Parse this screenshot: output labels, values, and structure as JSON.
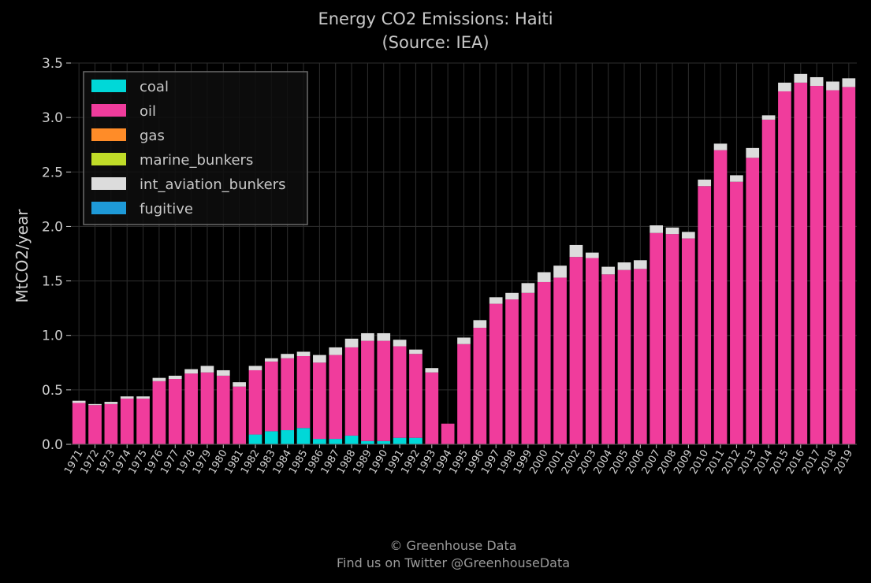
{
  "chart_data": {
    "type": "bar",
    "stacked": true,
    "title": "Energy CO2 Emissions: Haiti",
    "subtitle": "(Source: IEA)",
    "ylabel": "MtCO2/year",
    "xlabel": "",
    "ylim": [
      0,
      3.5
    ],
    "yticks": [
      "0.0",
      "0.5",
      "1.0",
      "1.5",
      "2.0",
      "2.5",
      "3.0",
      "3.5"
    ],
    "grid": true,
    "legend_position": "top-left",
    "categories": [
      "1971",
      "1972",
      "1973",
      "1974",
      "1975",
      "1976",
      "1977",
      "1978",
      "1979",
      "1980",
      "1981",
      "1982",
      "1983",
      "1984",
      "1985",
      "1986",
      "1987",
      "1988",
      "1989",
      "1990",
      "1991",
      "1992",
      "1993",
      "1994",
      "1995",
      "1996",
      "1997",
      "1998",
      "1999",
      "2000",
      "2001",
      "2002",
      "2003",
      "2004",
      "2005",
      "2006",
      "2007",
      "2008",
      "2009",
      "2010",
      "2011",
      "2012",
      "2013",
      "2014",
      "2015",
      "2016",
      "2017",
      "2018",
      "2019"
    ],
    "series": [
      {
        "name": "coal",
        "color": "#00d8d8",
        "values": [
          0,
          0,
          0,
          0,
          0,
          0,
          0,
          0,
          0,
          0,
          0,
          0.09,
          0.12,
          0.13,
          0.15,
          0.05,
          0.05,
          0.08,
          0.03,
          0.03,
          0.06,
          0.06,
          0,
          0,
          0,
          0,
          0,
          0,
          0,
          0,
          0,
          0,
          0,
          0,
          0,
          0,
          0,
          0,
          0,
          0,
          0,
          0,
          0,
          0,
          0,
          0,
          0,
          0,
          0
        ]
      },
      {
        "name": "oil",
        "color": "#f03c9c",
        "values": [
          0.38,
          0.36,
          0.37,
          0.42,
          0.42,
          0.58,
          0.6,
          0.65,
          0.66,
          0.63,
          0.53,
          0.59,
          0.64,
          0.66,
          0.66,
          0.7,
          0.77,
          0.81,
          0.92,
          0.92,
          0.84,
          0.77,
          0.66,
          0.19,
          0.92,
          1.07,
          1.29,
          1.33,
          1.39,
          1.49,
          1.53,
          1.72,
          1.71,
          1.56,
          1.6,
          1.61,
          1.94,
          1.93,
          1.89,
          2.37,
          2.7,
          2.41,
          2.63,
          2.98,
          3.24,
          3.32,
          3.29,
          3.25,
          3.28
        ]
      },
      {
        "name": "gas",
        "color": "#ff8c28",
        "values": [
          0,
          0,
          0,
          0,
          0,
          0,
          0,
          0,
          0,
          0,
          0,
          0,
          0,
          0,
          0,
          0,
          0,
          0,
          0,
          0,
          0,
          0,
          0,
          0,
          0,
          0,
          0,
          0,
          0,
          0,
          0,
          0,
          0,
          0,
          0,
          0,
          0,
          0,
          0,
          0,
          0,
          0,
          0,
          0,
          0,
          0,
          0,
          0,
          0
        ]
      },
      {
        "name": "marine_bunkers",
        "color": "#c0dc28",
        "values": [
          0,
          0,
          0,
          0,
          0,
          0,
          0,
          0,
          0,
          0,
          0,
          0,
          0,
          0,
          0,
          0,
          0,
          0,
          0,
          0,
          0,
          0,
          0,
          0,
          0,
          0,
          0,
          0,
          0,
          0,
          0,
          0,
          0,
          0,
          0,
          0,
          0,
          0,
          0,
          0,
          0,
          0,
          0,
          0,
          0,
          0,
          0,
          0,
          0
        ]
      },
      {
        "name": "int_aviation_bunkers",
        "color": "#dcdcdc",
        "values": [
          0.02,
          0.01,
          0.02,
          0.02,
          0.02,
          0.03,
          0.03,
          0.04,
          0.06,
          0.05,
          0.04,
          0.04,
          0.03,
          0.04,
          0.04,
          0.07,
          0.07,
          0.08,
          0.07,
          0.07,
          0.06,
          0.04,
          0.04,
          0,
          0.06,
          0.07,
          0.06,
          0.06,
          0.09,
          0.09,
          0.11,
          0.11,
          0.05,
          0.07,
          0.07,
          0.08,
          0.07,
          0.06,
          0.06,
          0.06,
          0.06,
          0.06,
          0.09,
          0.04,
          0.08,
          0.08,
          0.08,
          0.08,
          0.08
        ]
      },
      {
        "name": "fugitive",
        "color": "#1e9ad8",
        "values": [
          0,
          0,
          0,
          0,
          0,
          0,
          0,
          0,
          0,
          0,
          0,
          0,
          0,
          0,
          0,
          0,
          0,
          0,
          0,
          0,
          0,
          0,
          0,
          0,
          0,
          0,
          0,
          0,
          0,
          0,
          0,
          0,
          0,
          0,
          0,
          0,
          0,
          0,
          0,
          0,
          0,
          0,
          0,
          0,
          0,
          0,
          0,
          0,
          0
        ]
      }
    ]
  },
  "footer": {
    "line1": "© Greenhouse Data",
    "line2": "Find us on Twitter @GreenhouseData"
  }
}
